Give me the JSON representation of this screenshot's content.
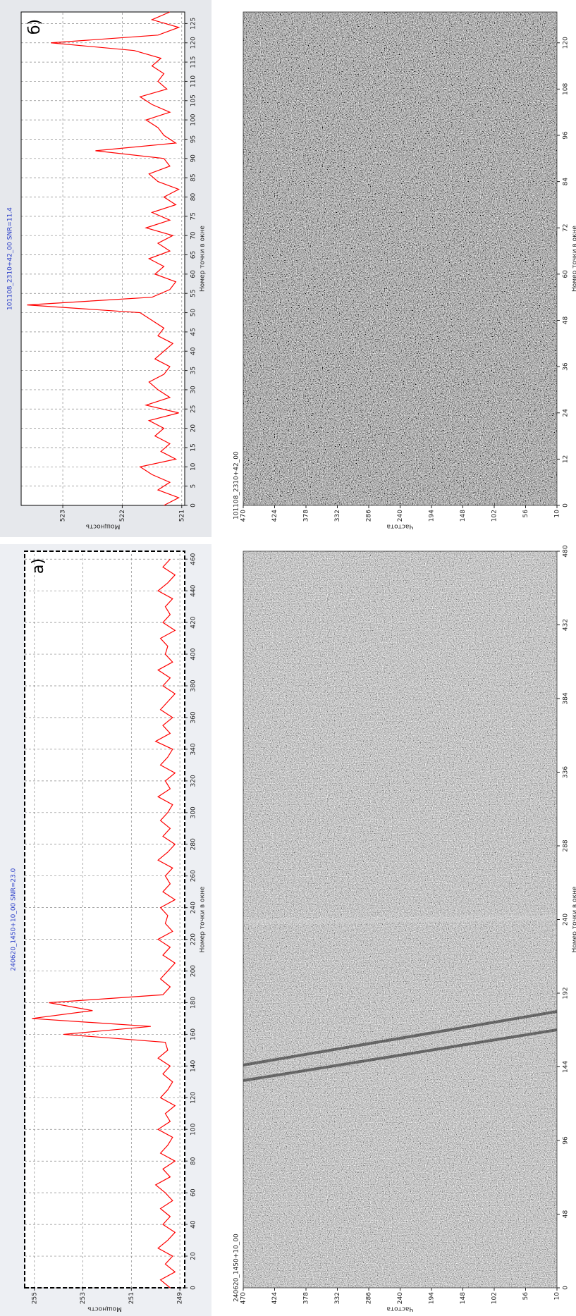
{
  "chart_data": [
    {
      "type": "line",
      "panel_label": "а)",
      "title": "240620_1450+10_00 SNR=23.0",
      "xlabel": "Номер точки в окне",
      "ylabel": "Мощность",
      "x": [
        0,
        5,
        10,
        15,
        20,
        25,
        30,
        35,
        40,
        45,
        50,
        55,
        60,
        65,
        70,
        75,
        80,
        85,
        90,
        95,
        100,
        105,
        110,
        115,
        120,
        125,
        130,
        135,
        140,
        145,
        150,
        155,
        160,
        165,
        170,
        175,
        180,
        185,
        190,
        195,
        200,
        205,
        210,
        215,
        220,
        225,
        230,
        235,
        240,
        245,
        250,
        255,
        260,
        265,
        270,
        275,
        280,
        285,
        290,
        295,
        300,
        305,
        310,
        315,
        320,
        325,
        330,
        335,
        340,
        345,
        350,
        355,
        360,
        365,
        370,
        375,
        380,
        385,
        390,
        395,
        400,
        405,
        410,
        415,
        420,
        425,
        430,
        435,
        440,
        445,
        450,
        455,
        460
      ],
      "series": [
        {
          "name": "Мощность",
          "color": "#ff0000",
          "values": [
            249.4,
            249.8,
            249.2,
            249.6,
            249.3,
            249.9,
            249.5,
            249.2,
            249.7,
            249.4,
            249.8,
            249.3,
            249.6,
            250.0,
            249.4,
            249.7,
            249.2,
            249.8,
            249.5,
            249.3,
            249.9,
            249.4,
            249.6,
            249.2,
            249.8,
            249.5,
            249.3,
            249.7,
            249.4,
            249.9,
            249.5,
            249.6,
            253.8,
            250.2,
            255.1,
            252.6,
            254.4,
            249.7,
            249.4,
            249.8,
            249.5,
            249.2,
            249.7,
            249.4,
            249.9,
            249.3,
            249.6,
            249.5,
            249.8,
            249.2,
            249.7,
            249.4,
            249.6,
            249.3,
            249.9,
            249.5,
            249.2,
            249.7,
            249.4,
            249.8,
            249.5,
            249.3,
            249.9,
            249.4,
            249.6,
            249.2,
            249.8,
            249.5,
            249.3,
            250.0,
            249.4,
            249.7,
            249.3,
            249.8,
            249.5,
            249.2,
            249.7,
            249.4,
            249.9,
            249.3,
            249.6,
            249.5,
            249.8,
            249.2,
            249.7,
            249.4,
            249.6,
            249.3,
            249.9,
            249.5,
            249.2,
            249.7,
            249.4
          ]
        }
      ],
      "xlim": [
        0,
        465
      ],
      "xticks": [
        0,
        20,
        40,
        60,
        80,
        100,
        120,
        140,
        160,
        180,
        200,
        220,
        240,
        260,
        280,
        300,
        320,
        340,
        360,
        380,
        400,
        420,
        440,
        460
      ],
      "ylim": [
        248.8,
        255.4
      ],
      "yticks": [
        249,
        251,
        253,
        255
      ],
      "grid": true
    },
    {
      "type": "image",
      "title": "240620_1450+10_00",
      "xlabel": "Номер точки в окне",
      "ylabel": "Частота",
      "xlim": [
        0,
        480
      ],
      "xticks": [
        0,
        48,
        96,
        144,
        192,
        240,
        288,
        336,
        384,
        432,
        480
      ],
      "ylim": [
        10,
        470
      ],
      "yticks": [
        470,
        424,
        378,
        332,
        286,
        240,
        194,
        148,
        102,
        56,
        10
      ]
    },
    {
      "type": "line",
      "panel_label": "б)",
      "title": "101108_2310+42_00 SNR=11.4",
      "xlabel": "Номер точки в окне",
      "ylabel": "Мощность",
      "x": [
        0,
        2,
        4,
        6,
        8,
        10,
        12,
        14,
        16,
        18,
        20,
        22,
        24,
        26,
        28,
        30,
        32,
        34,
        36,
        38,
        40,
        42,
        44,
        46,
        48,
        50,
        52,
        54,
        56,
        58,
        60,
        62,
        64,
        66,
        68,
        70,
        72,
        74,
        76,
        78,
        80,
        82,
        84,
        86,
        88,
        90,
        92,
        94,
        96,
        98,
        100,
        102,
        104,
        106,
        108,
        110,
        112,
        114,
        116,
        118,
        120,
        122,
        124,
        126,
        128
      ],
      "series": [
        {
          "name": "Мощность",
          "color": "#ff0000",
          "values": [
            521.3,
            521.05,
            521.4,
            521.2,
            521.5,
            521.7,
            521.1,
            521.35,
            521.2,
            521.45,
            521.3,
            521.55,
            521.05,
            521.6,
            521.2,
            521.4,
            521.55,
            521.3,
            521.2,
            521.45,
            521.3,
            521.15,
            521.4,
            521.3,
            521.5,
            521.7,
            523.6,
            521.5,
            521.2,
            521.1,
            521.45,
            521.3,
            521.55,
            521.2,
            521.4,
            521.15,
            521.6,
            521.2,
            521.5,
            521.1,
            521.3,
            521.05,
            521.4,
            521.55,
            521.2,
            521.3,
            522.45,
            521.1,
            521.3,
            521.4,
            521.6,
            521.2,
            521.5,
            521.7,
            521.25,
            521.4,
            521.3,
            521.5,
            521.35,
            521.8,
            523.2,
            521.4,
            521.05,
            521.5,
            521.2
          ]
        }
      ],
      "xlim": [
        0,
        128
      ],
      "xticks": [
        0,
        5,
        10,
        15,
        20,
        25,
        30,
        35,
        40,
        45,
        50,
        55,
        60,
        65,
        70,
        75,
        80,
        85,
        90,
        95,
        100,
        105,
        110,
        115,
        120,
        125
      ],
      "ylim": [
        520.95,
        523.7
      ],
      "yticks": [
        521,
        522,
        523
      ],
      "grid": true
    },
    {
      "type": "image",
      "title": "101108_2310+42_00",
      "xlabel": "Номер точки в окне",
      "ylabel": "Частота",
      "xlim": [
        0,
        128
      ],
      "xticks": [
        0,
        12,
        24,
        36,
        48,
        60,
        72,
        84,
        96,
        108,
        120
      ],
      "ylim": [
        10,
        470
      ],
      "yticks": [
        470,
        424,
        378,
        332,
        286,
        240,
        194,
        148,
        102,
        56,
        10
      ]
    }
  ]
}
